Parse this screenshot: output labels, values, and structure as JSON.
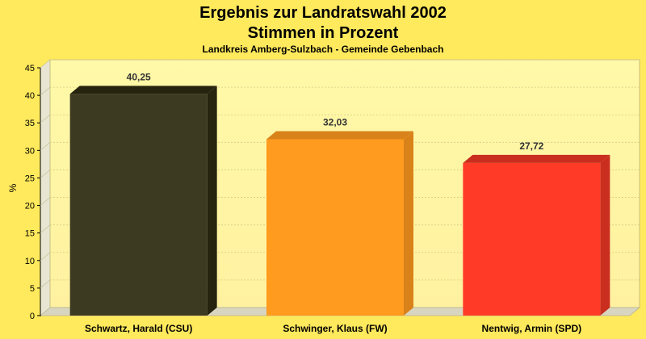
{
  "chart_data": {
    "type": "bar",
    "title": "Ergebnis zur Landratswahl 2002",
    "title2": "Stimmen in Prozent",
    "subtitle": "Landkreis Amberg-Sulzbach - Gemeinde Gebenbach",
    "ylabel": "%",
    "xlabel": "",
    "ylim": [
      0,
      45
    ],
    "yticks": [
      "0",
      "5",
      "10",
      "15",
      "20",
      "25",
      "30",
      "35",
      "40",
      "45"
    ],
    "grid": true,
    "categories": [
      "Schwartz, Harald (CSU)",
      "Schwinger, Klaus (FW)",
      "Nentwig, Armin (SPD)"
    ],
    "values": [
      40.25,
      32.03,
      27.72
    ],
    "value_labels": [
      "40,25",
      "32,03",
      "27,72"
    ],
    "colors": [
      "#3d3a22",
      "#ff9b1f",
      "#ff3b28"
    ],
    "side_colors": [
      "#26240f",
      "#d9821a",
      "#c92e1f"
    ]
  }
}
